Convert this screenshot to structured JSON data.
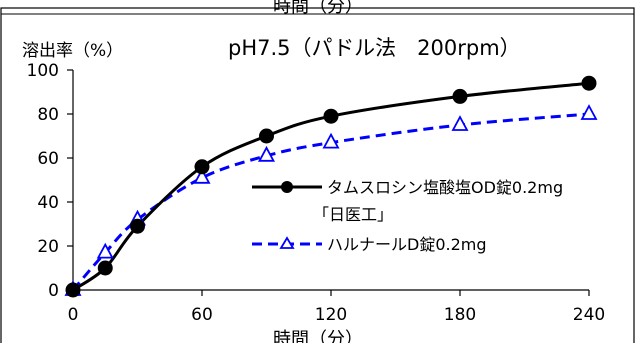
{
  "top_clipped_text": "時間（分）",
  "chart_data": {
    "type": "line",
    "title": "pH7.5（パドル法　200rpm）",
    "ylabel": "溶出率（%）",
    "xlabel": "時間（分）",
    "x": [
      0,
      15,
      30,
      60,
      90,
      120,
      180,
      240
    ],
    "xticks": [
      "0",
      "60",
      "120",
      "180",
      "240"
    ],
    "yticks": [
      "0",
      "20",
      "40",
      "60",
      "80",
      "100"
    ],
    "xlim": [
      0,
      240
    ],
    "ylim": [
      0,
      100
    ],
    "grid": false,
    "legend_position": "center-right",
    "series": [
      {
        "name_line1": "タムスロシン塩酸塩OD錠0.2mg",
        "name_line2": "「日医工」",
        "values": [
          0,
          10,
          29,
          56,
          70,
          79,
          88,
          94
        ],
        "color": "#000000",
        "line_style": "solid",
        "marker": "filled-circle"
      },
      {
        "name": "ハルナールD錠0.2mg",
        "values": [
          0,
          17,
          32,
          51,
          61,
          67,
          75,
          80
        ],
        "color": "#0000ff",
        "line_style": "dashed",
        "marker": "open-triangle"
      }
    ]
  }
}
